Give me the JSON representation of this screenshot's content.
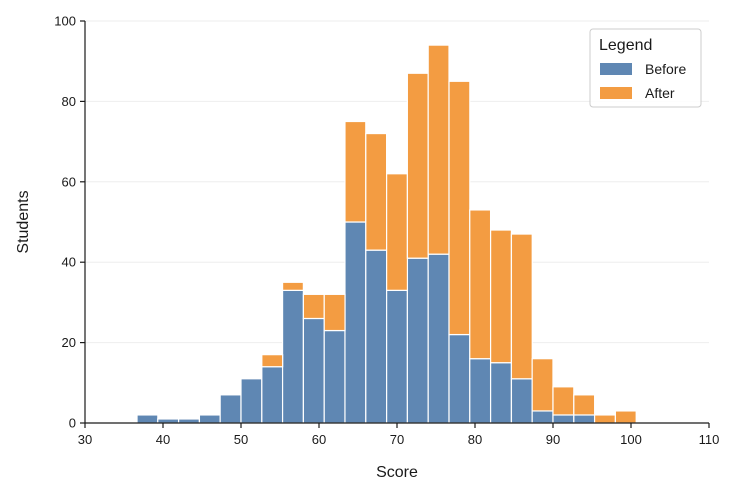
{
  "chart_data": {
    "type": "bar",
    "stacked": true,
    "xlabel": "Score",
    "ylabel": "Students",
    "xlim": [
      30,
      110
    ],
    "ylim": [
      0,
      100
    ],
    "xticks": [
      30,
      40,
      50,
      60,
      70,
      80,
      90,
      100,
      110
    ],
    "yticks": [
      0,
      20,
      40,
      60,
      80,
      100
    ],
    "bin_width": 2.6667,
    "bin_starts": [
      36.67,
      39.33,
      42.0,
      44.67,
      47.33,
      50.0,
      52.67,
      55.33,
      58.0,
      60.67,
      63.33,
      66.0,
      68.67,
      71.33,
      74.0,
      76.67,
      79.33,
      82.0,
      84.67,
      87.33,
      90.0,
      92.67,
      95.33,
      98.0
    ],
    "series": [
      {
        "name": "Before",
        "color": "#5f87b3",
        "values": [
          2,
          1,
          1,
          2,
          7,
          11,
          14,
          33,
          26,
          23,
          50,
          43,
          33,
          41,
          42,
          22,
          16,
          15,
          11,
          3,
          2,
          2,
          0,
          0
        ]
      },
      {
        "name": "After",
        "color": "#f39c42",
        "values": [
          0,
          0,
          0,
          0,
          0,
          0,
          3,
          2,
          6,
          9,
          25,
          29,
          29,
          46,
          52,
          63,
          37,
          33,
          36,
          13,
          7,
          5,
          2,
          3
        ]
      }
    ],
    "legend": {
      "title": "Legend",
      "position": "top-right"
    },
    "grid": true
  }
}
